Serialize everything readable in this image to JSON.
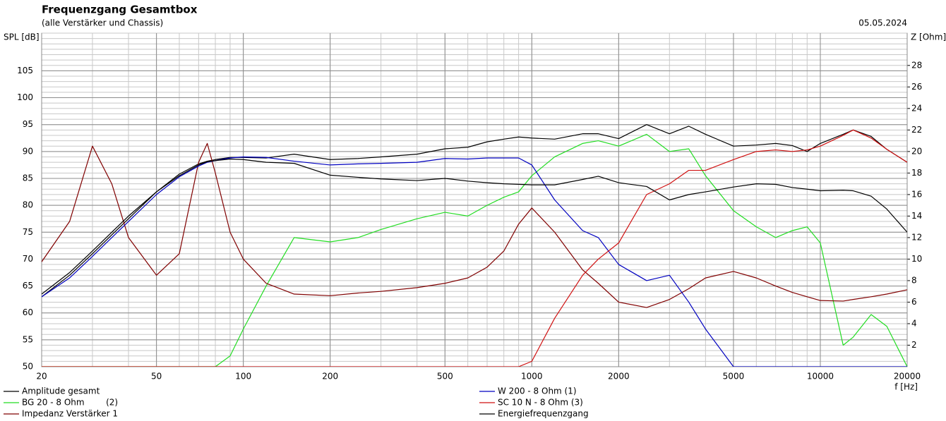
{
  "chart_data": {
    "type": "line",
    "title": "Frequenzgang Gesamtbox",
    "subtitle": "(alle Verstärker und Chassis)",
    "date": "05.05.2024",
    "y_label": "SPL [dB]",
    "y2_label": "Z [Ohm]",
    "x_label": "f [Hz]",
    "x_log": true,
    "grid": true,
    "x": [
      20,
      25,
      30,
      35,
      40,
      50,
      60,
      70,
      75,
      80,
      90,
      100,
      120,
      150,
      200,
      250,
      300,
      400,
      500,
      600,
      700,
      800,
      900,
      1000,
      1200,
      1500,
      1700,
      2000,
      2500,
      3000,
      3500,
      4000,
      5000,
      6000,
      7000,
      8000,
      9000,
      10000,
      12000,
      13000,
      15000,
      17000,
      20000
    ],
    "xlim": [
      20,
      20000
    ],
    "xticks": [
      20,
      50,
      100,
      200,
      500,
      1000,
      2000,
      5000,
      10000,
      20000
    ],
    "ylim": [
      50,
      112
    ],
    "yticks": [
      50,
      55,
      60,
      65,
      70,
      75,
      80,
      85,
      90,
      95,
      100,
      105
    ],
    "y2lim": [
      0,
      31
    ],
    "y2ticks": [
      2,
      4,
      6,
      8,
      10,
      12,
      14,
      16,
      18,
      20,
      22,
      24,
      26,
      28
    ],
    "series": [
      {
        "name": "Amplitude gesamt",
        "color": "#000000",
        "values": [
          63,
          67,
          71,
          74.5,
          77.5,
          82.5,
          85.8,
          87.7,
          88.2,
          88.5,
          88.9,
          88.9,
          88.8,
          89.5,
          88.5,
          88.7,
          89,
          89.5,
          90.5,
          90.8,
          91.8,
          92.3,
          92.7,
          92.5,
          92.3,
          93.3,
          93.3,
          92.4,
          95,
          93.3,
          94.7,
          93.2,
          91,
          91.2,
          91.5,
          91.1,
          90,
          91.5,
          93.2,
          94,
          92.8,
          90.4,
          88
        ]
      },
      {
        "name": "BG 20 - 8 Ohm        (2)",
        "color": "#22dd22",
        "values": [
          50,
          50,
          50,
          50,
          50,
          50,
          50,
          50,
          50,
          50,
          52,
          57,
          65,
          74,
          73.2,
          74,
          75.5,
          77.5,
          78.7,
          78,
          80,
          81.5,
          82.5,
          85.5,
          89,
          91.5,
          92,
          91,
          93.2,
          90,
          90.5,
          85.5,
          79,
          76,
          74,
          75.3,
          76,
          73,
          54,
          55.5,
          59.7,
          57.5,
          50
        ]
      },
      {
        "name": "Impedanz Verstärker 1",
        "color": "#800000",
        "axis": "y2",
        "values": [
          9.75,
          13.5,
          20.5,
          17,
          12,
          8.5,
          10.5,
          19,
          20.75,
          18,
          12.5,
          10,
          7.75,
          6.75,
          6.6,
          6.85,
          7,
          7.35,
          7.75,
          8.25,
          9.25,
          10.75,
          13.25,
          14.75,
          12.5,
          9,
          7.75,
          6,
          5.5,
          6.25,
          7.25,
          8.25,
          8.85,
          8.25,
          7.5,
          6.9,
          6.5,
          6.15,
          6.1,
          6.25,
          6.5,
          6.75,
          7.15
        ]
      },
      {
        "name": "W 200 - 8 Ohm (1)",
        "color": "#0000c0",
        "values": [
          63,
          66.5,
          70.5,
          74,
          77,
          82,
          85.3,
          87.3,
          88,
          88.3,
          88.8,
          89,
          88.9,
          88.2,
          87.5,
          87.7,
          87.8,
          88,
          88.7,
          88.6,
          88.8,
          88.8,
          88.8,
          87.5,
          81,
          75.3,
          74,
          69,
          66,
          67,
          62,
          57,
          50,
          50,
          50,
          50,
          50,
          50,
          50,
          50,
          50,
          50,
          50
        ]
      },
      {
        "name": "SC 10 N - 8 Ohm (3)",
        "color": "#d01010",
        "values": [
          50,
          50,
          50,
          50,
          50,
          50,
          50,
          50,
          50,
          50,
          50,
          50,
          50,
          50,
          50,
          50,
          50,
          50,
          50,
          50,
          50,
          50,
          50,
          51,
          59,
          67,
          70,
          73,
          82,
          84,
          86.5,
          86.5,
          88.5,
          90,
          90.3,
          90,
          90.3,
          91,
          93,
          94,
          92.5,
          90.4,
          88
        ]
      },
      {
        "name": "Energiefrequenzgang",
        "color": "#000000",
        "values": [
          63.5,
          67.5,
          71.5,
          75,
          78,
          82.5,
          85.5,
          87.5,
          88.1,
          88.3,
          88.6,
          88.5,
          88,
          87.8,
          85.6,
          85.2,
          84.9,
          84.6,
          85,
          84.5,
          84.2,
          84,
          83.9,
          83.8,
          83.8,
          84.8,
          85.4,
          84.2,
          83.5,
          81,
          82,
          82.5,
          83.4,
          84,
          83.9,
          83.3,
          83,
          82.7,
          82.8,
          82.7,
          81.7,
          79.3,
          75
        ]
      }
    ]
  }
}
